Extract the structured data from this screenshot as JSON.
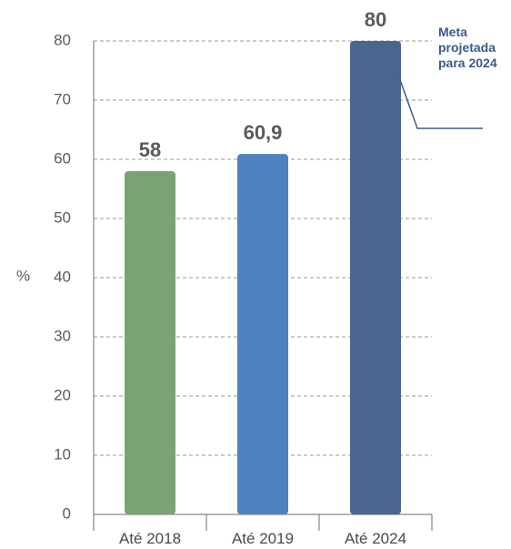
{
  "chart_data": {
    "type": "bar",
    "categories": [
      "Até 2018",
      "Até 2019",
      "Até 2024"
    ],
    "values": [
      58,
      60.9,
      80
    ],
    "value_labels": [
      "58",
      "60,9",
      "80"
    ],
    "colors": [
      "#7aa374",
      "#4f80c0",
      "#4a6690"
    ],
    "ylabel": "%",
    "ylim": [
      0,
      80
    ],
    "yticks": [
      0,
      10,
      20,
      30,
      40,
      50,
      60,
      70,
      80
    ],
    "grid": true,
    "annotation": {
      "lines": [
        "Meta",
        "projetada",
        "para 2024"
      ],
      "color": "#3f5a8a",
      "target_category": "Até 2024"
    }
  }
}
